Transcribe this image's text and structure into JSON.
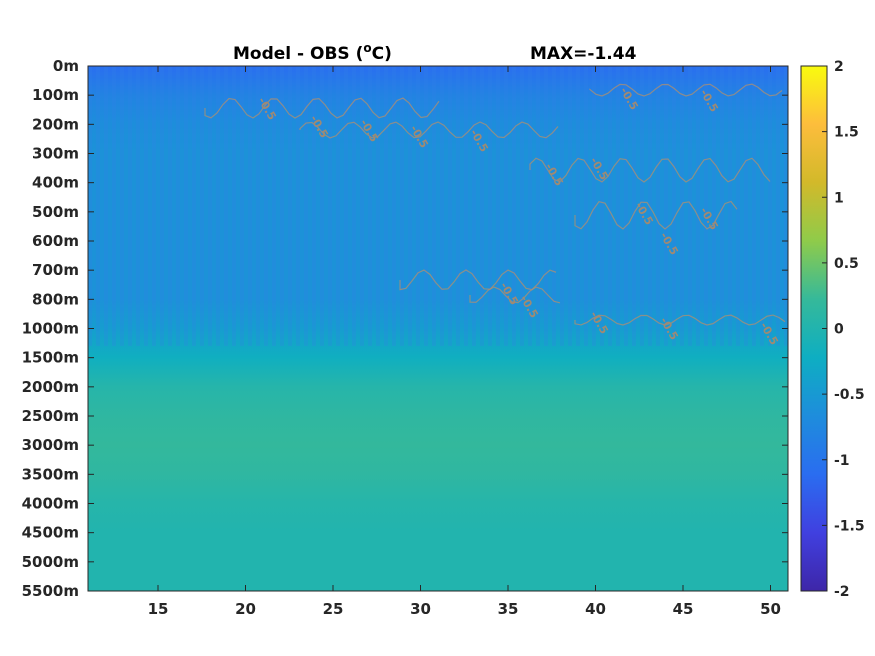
{
  "chart_data": {
    "type": "heatmap",
    "title_left": "Model - OBS (",
    "title_deg": "o",
    "title_unit": "C)",
    "title_right": "MAX=-1.44",
    "x_ticks": [
      15,
      20,
      25,
      30,
      35,
      40,
      45,
      50
    ],
    "x_range": [
      11,
      51
    ],
    "y_tick_labels": [
      "0m",
      "100m",
      "200m",
      "300m",
      "400m",
      "500m",
      "600m",
      "700m",
      "800m",
      "1000m",
      "1500m",
      "2000m",
      "2500m",
      "3000m",
      "3500m",
      "4000m",
      "4500m",
      "5000m",
      "5500m"
    ],
    "colorbar_ticks": [
      "2",
      "1.5",
      "1",
      "0.5",
      "0",
      "-0.5",
      "-1",
      "-1.5",
      "-2"
    ],
    "colorbar_range": [
      -2,
      2
    ],
    "colorbar_stops": [
      "#f9fb0e",
      "#fdbd3c",
      "#d2b92a",
      "#8fcb4a",
      "#35b99a",
      "#0eaec2",
      "#1e8ddc",
      "#2a6df0",
      "#4040e0",
      "#3e26a8"
    ],
    "contour_label": "-0.5",
    "bands": [
      {
        "label": "0m",
        "value": -1.1
      },
      {
        "label": "100m",
        "value": -0.8
      },
      {
        "label": "200m",
        "value": -0.65
      },
      {
        "label": "300m",
        "value": -0.6
      },
      {
        "label": "400m",
        "value": -0.6
      },
      {
        "label": "500m",
        "value": -0.6
      },
      {
        "label": "600m",
        "value": -0.6
      },
      {
        "label": "700m",
        "value": -0.6
      },
      {
        "label": "800m",
        "value": -0.6
      },
      {
        "label": "1000m",
        "value": -0.45
      },
      {
        "label": "1500m",
        "value": -0.2
      },
      {
        "label": "2000m",
        "value": 0.05
      },
      {
        "label": "2500m",
        "value": 0.15
      },
      {
        "label": "3000m",
        "value": 0.2
      },
      {
        "label": "3500m",
        "value": 0.15
      },
      {
        "label": "4000m",
        "value": 0.05
      },
      {
        "label": "4500m",
        "value": 0.0
      },
      {
        "label": "5000m",
        "value": 0.0
      },
      {
        "label": "5500m",
        "value": 0.0
      }
    ]
  }
}
